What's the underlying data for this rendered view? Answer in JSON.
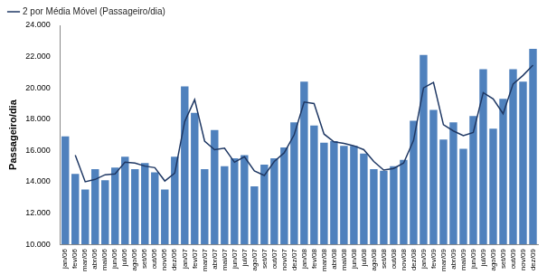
{
  "chart_data": {
    "type": "bar",
    "y_label": "Passageiro/dia",
    "categories": [
      "jan/06",
      "fev/06",
      "mar/06",
      "abr/06",
      "mai/06",
      "jun/06",
      "jul/06",
      "ago/06",
      "set/06",
      "out/06",
      "nov/06",
      "dez/06",
      "jan/07",
      "fev/07",
      "mar/07",
      "abr/07",
      "mai/07",
      "jun/07",
      "jul/07",
      "ago/07",
      "set/07",
      "out/07",
      "nov/07",
      "dez/07",
      "jan/08",
      "fev/08",
      "mar/08",
      "abr/08",
      "mai/08",
      "jun/08",
      "jul/08",
      "ago/08",
      "set/08",
      "out/08",
      "nov/08",
      "dez/08",
      "jan/09",
      "fev/09",
      "mar/09",
      "abr/09",
      "mai/09",
      "jun/09",
      "jul/09",
      "ago/09",
      "set/09",
      "out/09",
      "nov/09",
      "dez/09"
    ],
    "series": [
      {
        "type": "bar",
        "color": "#4f81bd",
        "values": [
          16900,
          14500,
          13500,
          14800,
          14100,
          14900,
          15600,
          14800,
          15200,
          14600,
          13500,
          15600,
          20100,
          18400,
          14800,
          17300,
          15000,
          15500,
          15700,
          13700,
          15100,
          15500,
          16200,
          17800,
          20400,
          17600,
          16500,
          16600,
          16300,
          16300,
          15800,
          14800,
          14700,
          15000,
          15400,
          17900,
          22100,
          18600,
          16700,
          17800,
          16100,
          18200,
          21200,
          17400,
          19300,
          21200,
          20400,
          22500
        ]
      },
      {
        "type": "line",
        "name": "2 por Média Móvel (Passageiro/dia)",
        "color": "#1f3864",
        "line_style": "solid",
        "marker": "none",
        "values": [
          null,
          15700,
          14000,
          14150,
          14450,
          14500,
          15250,
          15200,
          15000,
          14900,
          14050,
          14550,
          17850,
          19250,
          16600,
          16050,
          16150,
          15250,
          15600,
          14700,
          14400,
          15300,
          15850,
          17000,
          19100,
          19000,
          17050,
          16550,
          16450,
          16300,
          16050,
          15300,
          14750,
          14850,
          15200,
          16650,
          20000,
          20350,
          17650,
          17250,
          16950,
          17150,
          19700,
          19300,
          18350,
          20250,
          20800,
          21450
        ]
      }
    ],
    "ylim": [
      10000,
      24000
    ],
    "yticks": [
      {
        "value": 10000,
        "label": "10.000"
      },
      {
        "value": 12000,
        "label": "12.000"
      },
      {
        "value": 14000,
        "label": "14.000"
      },
      {
        "value": 16000,
        "label": "16.000"
      },
      {
        "value": 18000,
        "label": "18.000"
      },
      {
        "value": 20000,
        "label": "20.000"
      },
      {
        "value": 22000,
        "label": "22.000"
      },
      {
        "value": 24000,
        "label": "24.000"
      }
    ],
    "grid": false,
    "legend": "upper left"
  }
}
